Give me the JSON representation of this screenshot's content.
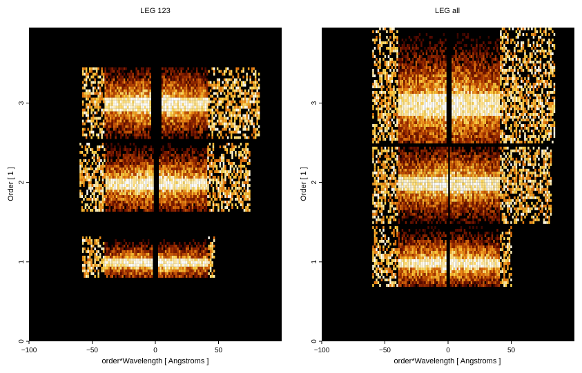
{
  "chart_data": [
    {
      "type": "heatmap",
      "title": "LEG 123",
      "xlabel": "order*Wavelength [ Angstroms ]",
      "ylabel": "Order [ 1 ]",
      "xlim": [
        -100,
        100
      ],
      "ylim": [
        0,
        3.95
      ],
      "xticks": [
        "−100",
        "−50",
        "0",
        "50"
      ],
      "yticks": [
        "0",
        "1",
        "2",
        "3"
      ],
      "colormap": [
        "#000000",
        "#5a0a00",
        "#a33000",
        "#e87a10",
        "#ffd040",
        "#ffffff"
      ],
      "bands": [
        {
          "y": 1,
          "y_range": [
            0.82,
            1.32
          ],
          "x_range": [
            -58,
            47
          ],
          "gap": [
            -2,
            1
          ]
        },
        {
          "y": 2,
          "y_range": [
            1.66,
            2.5
          ],
          "x_range": [
            -60,
            75
          ],
          "gap": [
            -2,
            2
          ]
        },
        {
          "y": 3,
          "y_range": [
            2.55,
            3.45
          ],
          "x_range": [
            -58,
            82
          ],
          "gap": [
            -4,
            4
          ]
        }
      ]
    },
    {
      "type": "heatmap",
      "title": "LEG all",
      "xlabel": "order*Wavelength [ Angstroms ]",
      "ylabel": "Order [ 1 ]",
      "xlim": [
        -100,
        100
      ],
      "ylim": [
        0,
        3.95
      ],
      "xticks": [
        "−100",
        "−50",
        "0",
        "50"
      ],
      "yticks": [
        "0",
        "1",
        "2",
        "3"
      ],
      "colormap": [
        "#000000",
        "#5a0a00",
        "#a33000",
        "#e87a10",
        "#ffd040",
        "#ffffff"
      ],
      "bands": [
        {
          "y": 1,
          "y_range": [
            0.7,
            1.45
          ],
          "x_range": [
            -60,
            50
          ],
          "gap": [
            -2,
            1
          ]
        },
        {
          "y": 2,
          "y_range": [
            1.5,
            2.45
          ],
          "x_range": [
            -60,
            82
          ],
          "gap": [
            -1,
            1
          ]
        },
        {
          "y": 3,
          "y_range": [
            2.5,
            3.95
          ],
          "x_range": [
            -60,
            84
          ],
          "gap": [
            -2,
            2
          ]
        }
      ]
    }
  ]
}
